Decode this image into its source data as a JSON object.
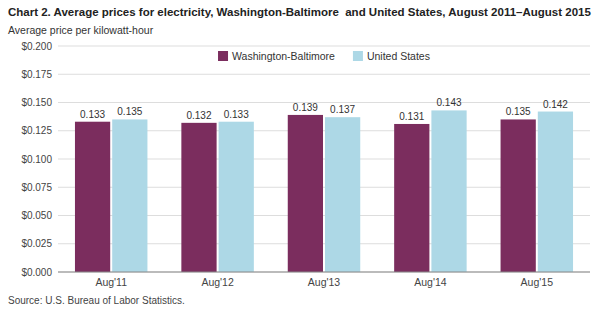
{
  "chart_data": {
    "type": "bar",
    "title": "Chart 2. Average prices for electricity, Washington-Baltimore  and United States, August 2011–August 2015",
    "ylabel": "Average price per kilowatt-hour",
    "source": "Source: U.S. Bureau of Labor Statistics.",
    "categories": [
      "Aug'11",
      "Aug'12",
      "Aug'13",
      "Aug'14",
      "Aug'15"
    ],
    "series": [
      {
        "name": "Washington-Baltimore",
        "color": "#7B2D5E",
        "values": [
          0.133,
          0.132,
          0.139,
          0.131,
          0.135
        ]
      },
      {
        "name": "United States",
        "color": "#ADD8E6",
        "values": [
          0.135,
          0.133,
          0.137,
          0.143,
          0.142
        ]
      }
    ],
    "ylim": [
      0,
      0.2
    ],
    "yticks": [
      {
        "value": 0,
        "label": "$0.000"
      },
      {
        "value": 0.025,
        "label": "$0.025"
      },
      {
        "value": 0.05,
        "label": "$0.050"
      },
      {
        "value": 0.075,
        "label": "$0.075"
      },
      {
        "value": 0.1,
        "label": "$0.100"
      },
      {
        "value": 0.125,
        "label": "$0.125"
      },
      {
        "value": 0.15,
        "label": "$0.150"
      },
      {
        "value": 0.175,
        "label": "$0.175"
      },
      {
        "value": 0.2,
        "label": "$0.200"
      }
    ],
    "grid": true,
    "legend": "top",
    "data_labels": true
  }
}
